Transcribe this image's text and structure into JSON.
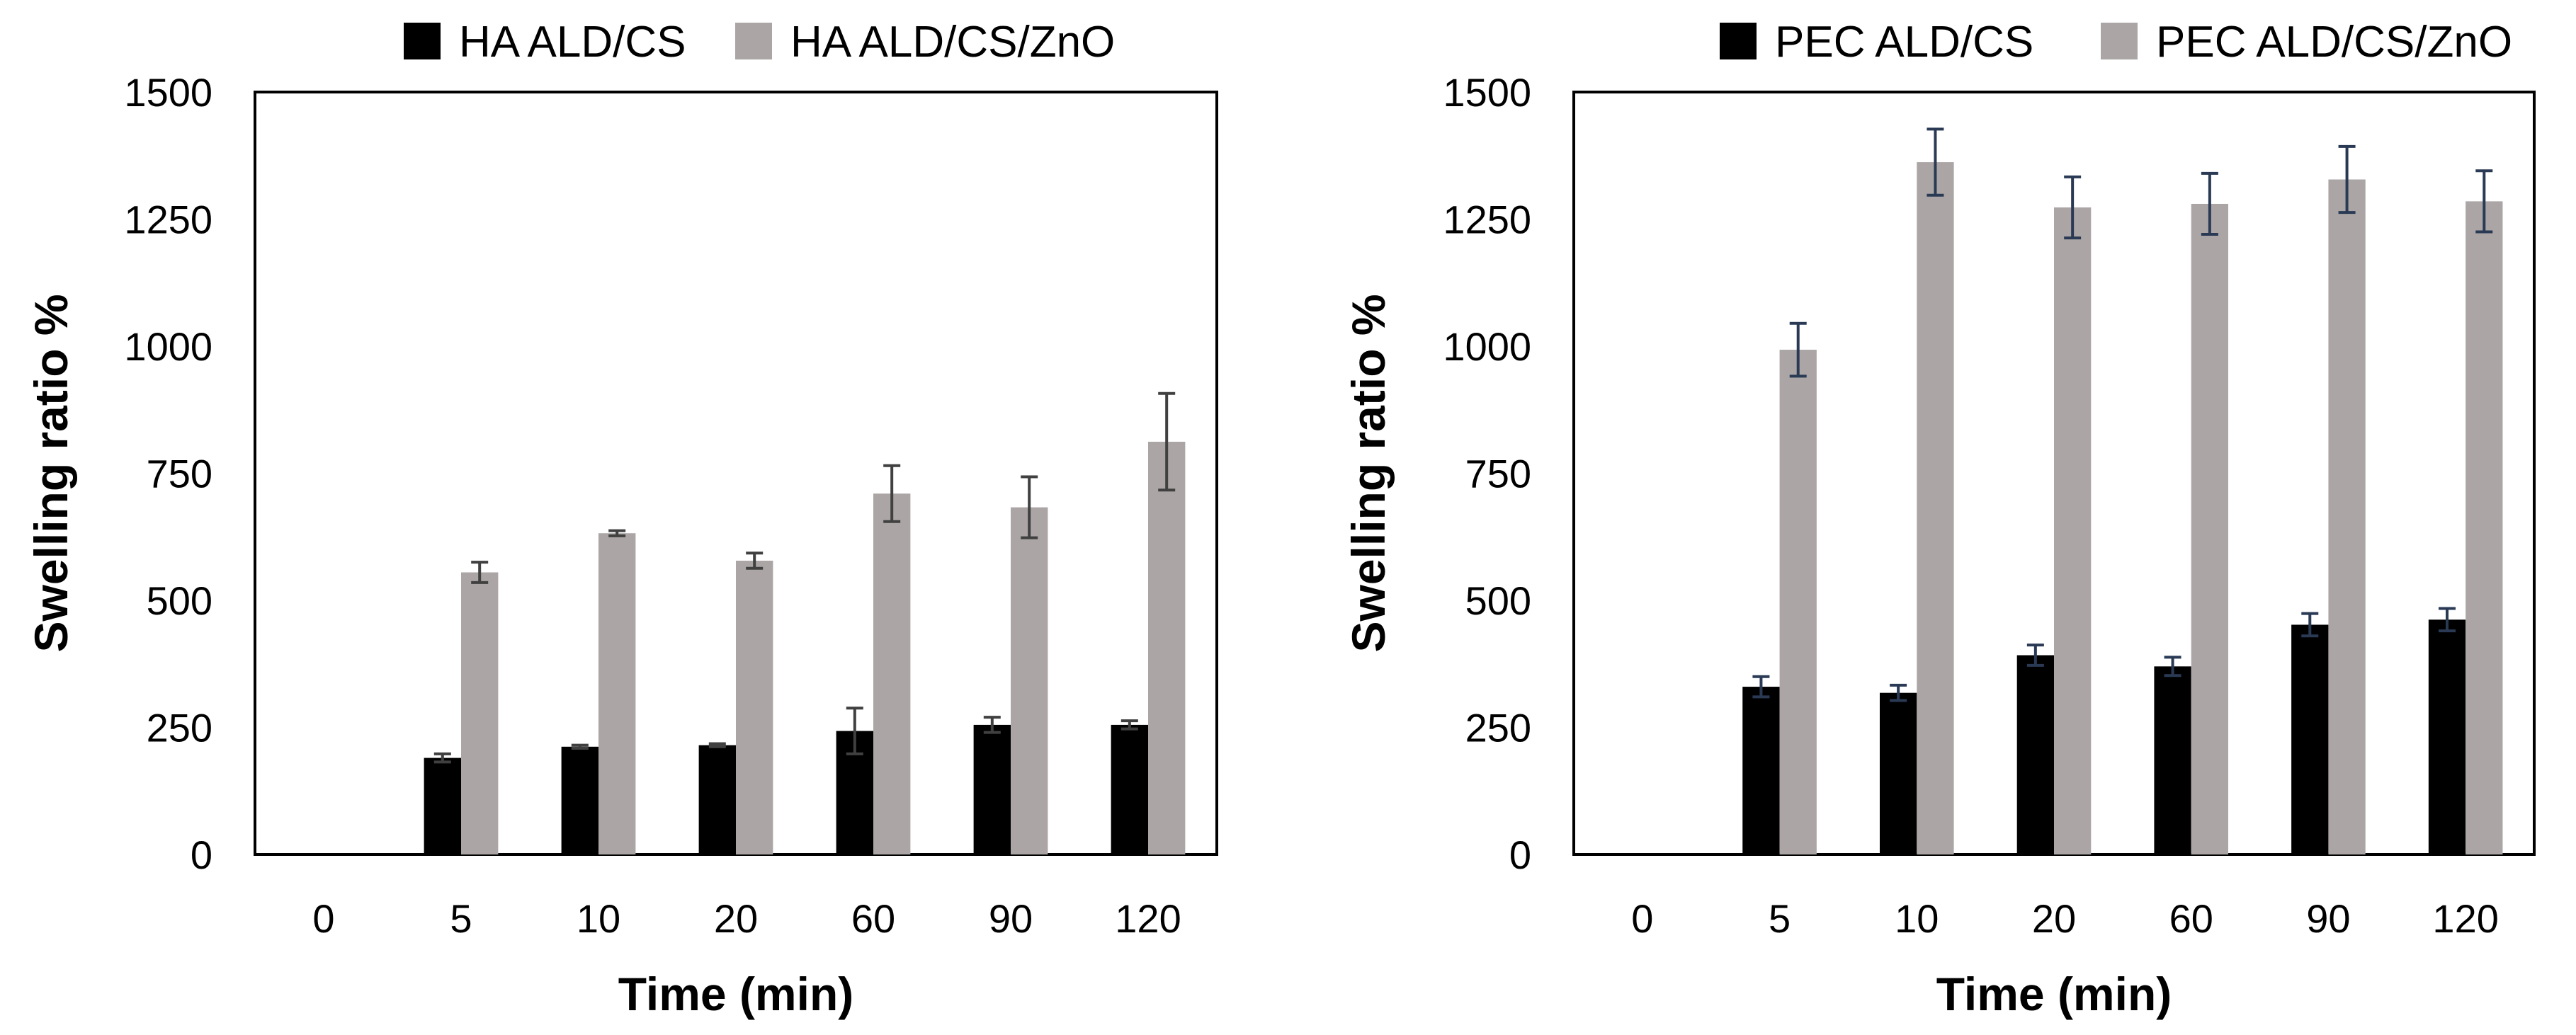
{
  "figure": {
    "description_label": "Swelling ratio charts"
  },
  "colors": {
    "series1": "#000000",
    "series2": "#aba6a5",
    "error_left": "#404040",
    "error_right": "#2a3a55"
  },
  "chart_data": [
    {
      "type": "bar",
      "title": "",
      "xlabel": "Time (min)",
      "ylabel": "Swelling ratio %",
      "categories": [
        "0",
        "5",
        "10",
        "20",
        "60",
        "90",
        "120"
      ],
      "ylim": [
        0,
        1500
      ],
      "yticks": [
        "0",
        "250",
        "500",
        "750",
        "1000",
        "1250",
        "1500"
      ],
      "legend_position": "top",
      "series": [
        {
          "name": "HA ALD/CS",
          "values": [
            0,
            190,
            212,
            215,
            243,
            255,
            255
          ],
          "errors": [
            0,
            8,
            3,
            3,
            45,
            15,
            8
          ]
        },
        {
          "name": "HA ALD/CS/ZnO",
          "values": [
            0,
            555,
            632,
            578,
            710,
            683,
            812
          ],
          "errors": [
            0,
            20,
            5,
            15,
            55,
            60,
            95
          ]
        }
      ]
    },
    {
      "type": "bar",
      "title": "",
      "xlabel": "Time (min)",
      "ylabel": "Swelling ratio %",
      "categories": [
        "0",
        "5",
        "10",
        "20",
        "60",
        "90",
        "120"
      ],
      "ylim": [
        0,
        1500
      ],
      "yticks": [
        "0",
        "250",
        "500",
        "750",
        "1000",
        "1250",
        "1500"
      ],
      "legend_position": "top",
      "series": [
        {
          "name": "PEC ALD/CS",
          "values": [
            0,
            330,
            318,
            392,
            370,
            452,
            462
          ],
          "errors": [
            0,
            20,
            15,
            20,
            18,
            22,
            22
          ]
        },
        {
          "name": "PEC ALD/CS/ZnO",
          "values": [
            0,
            993,
            1362,
            1273,
            1280,
            1328,
            1285
          ],
          "errors": [
            0,
            52,
            65,
            60,
            60,
            65,
            60
          ]
        }
      ]
    }
  ]
}
